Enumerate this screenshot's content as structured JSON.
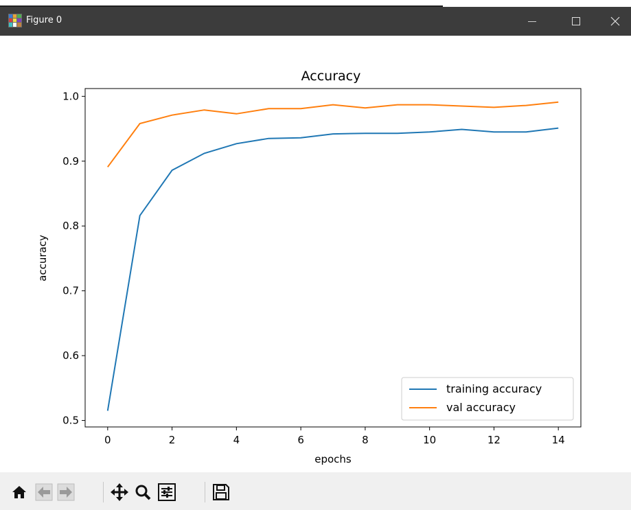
{
  "window": {
    "title": "Figure 0"
  },
  "toolbar": {
    "buttons": [
      {
        "icon": "home-icon"
      },
      {
        "icon": "back-arrow-icon"
      },
      {
        "icon": "forward-arrow-icon"
      },
      {
        "icon": "pan-move-icon"
      },
      {
        "icon": "zoom-magnifier-icon"
      },
      {
        "icon": "configure-subplots-icon"
      },
      {
        "icon": "save-floppy-icon"
      }
    ]
  },
  "chart_data": {
    "type": "line",
    "title": "Accuracy",
    "xlabel": "epochs",
    "ylabel": "accuracy",
    "xlim": [
      -0.7,
      14.7
    ],
    "ylim": [
      0.49,
      1.012
    ],
    "xticks": [
      0,
      2,
      4,
      6,
      8,
      10,
      12,
      14
    ],
    "xtick_labels": [
      "0",
      "2",
      "4",
      "6",
      "8",
      "10",
      "12",
      "14"
    ],
    "yticks": [
      0.5,
      0.6,
      0.7,
      0.8,
      0.9,
      1.0
    ],
    "ytick_labels": [
      "0.5",
      "0.6",
      "0.7",
      "0.8",
      "0.9",
      "1.0"
    ],
    "x": [
      0,
      1,
      2,
      3,
      4,
      5,
      6,
      7,
      8,
      9,
      10,
      11,
      12,
      13,
      14
    ],
    "series": [
      {
        "name": "training accuracy",
        "color": "#1f77b4",
        "values": [
          0.515,
          0.816,
          0.886,
          0.912,
          0.927,
          0.935,
          0.936,
          0.942,
          0.943,
          0.943,
          0.945,
          0.949,
          0.945,
          0.945,
          0.951
        ]
      },
      {
        "name": "val accuracy",
        "color": "#ff7f0e",
        "values": [
          0.891,
          0.958,
          0.971,
          0.979,
          0.973,
          0.981,
          0.981,
          0.987,
          0.982,
          0.987,
          0.987,
          0.985,
          0.983,
          0.986,
          0.991
        ]
      }
    ],
    "legend": "lower right",
    "grid": false
  }
}
